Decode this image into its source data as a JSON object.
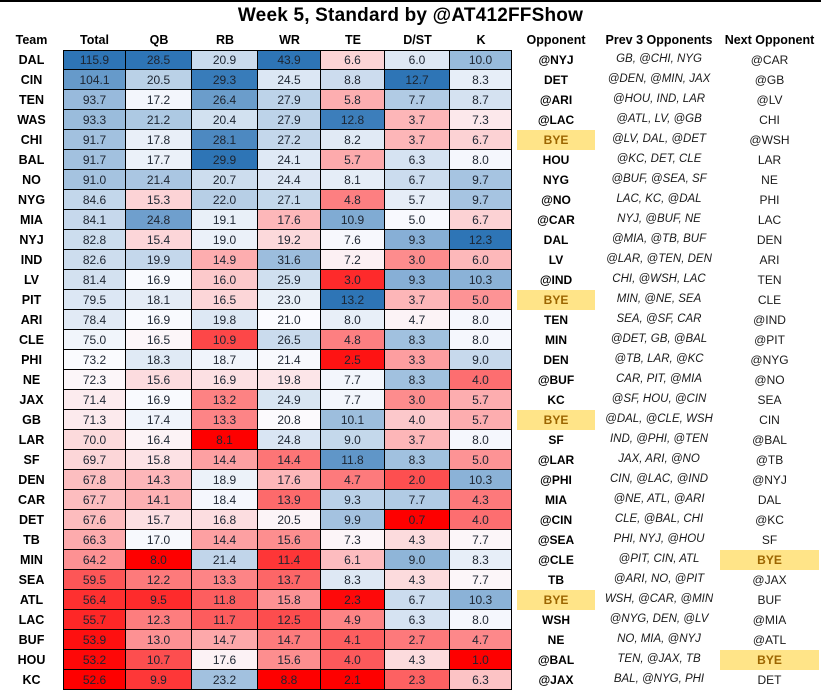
{
  "title": "Week 5, Standard by @AT412FFShow",
  "colors": {
    "scale_low": "#FE0000",
    "scale_mid": "#FCFCFF",
    "scale_high": "#2E75B6",
    "bye_bg": "#FFE488",
    "bye_text": "#9C6500",
    "cell_border": "#000000",
    "number_text": "#1C2430"
  },
  "chart_data": {
    "type": "table",
    "title": "Week 5, Standard by @AT412FFShow",
    "columns": [
      "Team",
      "Total",
      "QB",
      "RB",
      "WR",
      "TE",
      "D/ST",
      "K",
      "Opponent",
      "Prev 3 Opponents",
      "Next Opponent"
    ],
    "score_columns": [
      "Total",
      "QB",
      "RB",
      "WR",
      "TE",
      "D/ST",
      "K"
    ],
    "color_scale": "per-column 3-color scale: red at column min, white at column median, blue at column max",
    "bye_highlight": "gold fill with dark gold text on BYE cells",
    "rows": [
      {
        "team": "DAL",
        "total": 115.9,
        "qb": 28.5,
        "rb": 20.9,
        "wr": 43.9,
        "te": 6.6,
        "dst": 6.0,
        "k": 10.0,
        "opp": "@NYJ",
        "prev3": "GB, @CHI, NYG",
        "next": "@CAR"
      },
      {
        "team": "CIN",
        "total": 104.1,
        "qb": 20.5,
        "rb": 29.3,
        "wr": 24.5,
        "te": 8.8,
        "dst": 12.7,
        "k": 8.3,
        "opp": "DET",
        "prev3": "@DEN, @MIN, JAX",
        "next": "@GB"
      },
      {
        "team": "TEN",
        "total": 93.7,
        "qb": 17.2,
        "rb": 26.4,
        "wr": 27.9,
        "te": 5.8,
        "dst": 7.7,
        "k": 8.7,
        "opp": "@ARI",
        "prev3": "@HOU, IND, LAR",
        "next": "@LV"
      },
      {
        "team": "WAS",
        "total": 93.3,
        "qb": 21.2,
        "rb": 20.4,
        "wr": 27.9,
        "te": 12.8,
        "dst": 3.7,
        "k": 7.3,
        "opp": "@LAC",
        "prev3": "@ATL, LV, @GB",
        "next": "CHI"
      },
      {
        "team": "CHI",
        "total": 91.7,
        "qb": 17.8,
        "rb": 28.1,
        "wr": 27.2,
        "te": 8.2,
        "dst": 3.7,
        "k": 6.7,
        "opp": "BYE",
        "prev3": "@LV, DAL, @DET",
        "next": "@WSH"
      },
      {
        "team": "BAL",
        "total": 91.7,
        "qb": 17.7,
        "rb": 29.9,
        "wr": 24.1,
        "te": 5.7,
        "dst": 6.3,
        "k": 8.0,
        "opp": "HOU",
        "prev3": "@KC, DET, CLE",
        "next": "LAR"
      },
      {
        "team": "NO",
        "total": 91.0,
        "qb": 21.4,
        "rb": 20.7,
        "wr": 24.4,
        "te": 8.1,
        "dst": 6.7,
        "k": 9.7,
        "opp": "NYG",
        "prev3": "@BUF, @SEA, SF",
        "next": "NE"
      },
      {
        "team": "NYG",
        "total": 84.6,
        "qb": 15.3,
        "rb": 22.0,
        "wr": 27.1,
        "te": 4.8,
        "dst": 5.7,
        "k": 9.7,
        "opp": "@NO",
        "prev3": "LAC, KC, @DAL",
        "next": "PHI"
      },
      {
        "team": "MIA",
        "total": 84.1,
        "qb": 24.8,
        "rb": 19.1,
        "wr": 17.6,
        "te": 10.9,
        "dst": 5.0,
        "k": 6.7,
        "opp": "@CAR",
        "prev3": "NYJ, @BUF, NE",
        "next": "LAC"
      },
      {
        "team": "NYJ",
        "total": 82.8,
        "qb": 15.4,
        "rb": 19.0,
        "wr": 19.2,
        "te": 7.6,
        "dst": 9.3,
        "k": 12.3,
        "opp": "DAL",
        "prev3": "@MIA, @TB, BUF",
        "next": "DEN"
      },
      {
        "team": "IND",
        "total": 82.6,
        "qb": 19.9,
        "rb": 14.9,
        "wr": 31.6,
        "te": 7.2,
        "dst": 3.0,
        "k": 6.0,
        "opp": "LV",
        "prev3": "@LAR, @TEN, DEN",
        "next": "ARI"
      },
      {
        "team": "LV",
        "total": 81.4,
        "qb": 16.9,
        "rb": 16.0,
        "wr": 25.9,
        "te": 3.0,
        "dst": 9.3,
        "k": 10.3,
        "opp": "@IND",
        "prev3": "CHI, @WSH, LAC",
        "next": "TEN"
      },
      {
        "team": "PIT",
        "total": 79.5,
        "qb": 18.1,
        "rb": 16.5,
        "wr": 23.0,
        "te": 13.2,
        "dst": 3.7,
        "k": 5.0,
        "opp": "BYE",
        "prev3": "MIN, @NE, SEA",
        "next": "CLE"
      },
      {
        "team": "ARI",
        "total": 78.4,
        "qb": 16.9,
        "rb": 19.8,
        "wr": 21.0,
        "te": 8.0,
        "dst": 4.7,
        "k": 8.0,
        "opp": "TEN",
        "prev3": "SEA, @SF, CAR",
        "next": "@IND"
      },
      {
        "team": "CLE",
        "total": 75.0,
        "qb": 16.5,
        "rb": 10.9,
        "wr": 26.5,
        "te": 4.8,
        "dst": 8.3,
        "k": 8.0,
        "opp": "MIN",
        "prev3": "@DET, GB, @BAL",
        "next": "@PIT"
      },
      {
        "team": "PHI",
        "total": 73.2,
        "qb": 18.3,
        "rb": 18.7,
        "wr": 21.4,
        "te": 2.5,
        "dst": 3.3,
        "k": 9.0,
        "opp": "DEN",
        "prev3": "@TB, LAR, @KC",
        "next": "@NYG"
      },
      {
        "team": "NE",
        "total": 72.3,
        "qb": 15.6,
        "rb": 16.9,
        "wr": 19.8,
        "te": 7.7,
        "dst": 8.3,
        "k": 4.0,
        "opp": "@BUF",
        "prev3": "CAR, PIT, @MIA",
        "next": "@NO"
      },
      {
        "team": "JAX",
        "total": 71.4,
        "qb": 16.9,
        "rb": 13.2,
        "wr": 24.9,
        "te": 7.7,
        "dst": 3.0,
        "k": 5.7,
        "opp": "KC",
        "prev3": "@SF, HOU, @CIN",
        "next": "SEA"
      },
      {
        "team": "GB",
        "total": 71.3,
        "qb": 17.4,
        "rb": 13.3,
        "wr": 20.8,
        "te": 10.1,
        "dst": 4.0,
        "k": 5.7,
        "opp": "BYE",
        "prev3": "@DAL, @CLE, WSH",
        "next": "CIN"
      },
      {
        "team": "LAR",
        "total": 70.0,
        "qb": 16.4,
        "rb": 8.1,
        "wr": 24.8,
        "te": 9.0,
        "dst": 3.7,
        "k": 8.0,
        "opp": "SF",
        "prev3": "IND, @PHI, @TEN",
        "next": "@BAL"
      },
      {
        "team": "SF",
        "total": 69.7,
        "qb": 15.8,
        "rb": 14.4,
        "wr": 14.4,
        "te": 11.8,
        "dst": 8.3,
        "k": 5.0,
        "opp": "@LAR",
        "prev3": "JAX, ARI, @NO",
        "next": "@TB"
      },
      {
        "team": "DEN",
        "total": 67.8,
        "qb": 14.3,
        "rb": 18.9,
        "wr": 17.6,
        "te": 4.7,
        "dst": 2.0,
        "k": 10.3,
        "opp": "@PHI",
        "prev3": "CIN, @LAC, @IND",
        "next": "@NYJ"
      },
      {
        "team": "CAR",
        "total": 67.7,
        "qb": 14.1,
        "rb": 18.4,
        "wr": 13.9,
        "te": 9.3,
        "dst": 7.7,
        "k": 4.3,
        "opp": "MIA",
        "prev3": "@NE, ATL, @ARI",
        "next": "DAL"
      },
      {
        "team": "DET",
        "total": 67.6,
        "qb": 15.7,
        "rb": 16.8,
        "wr": 20.5,
        "te": 9.9,
        "dst": 0.7,
        "k": 4.0,
        "opp": "@CIN",
        "prev3": "CLE, @BAL, CHI",
        "next": "@KC"
      },
      {
        "team": "TB",
        "total": 66.3,
        "qb": 17.0,
        "rb": 14.4,
        "wr": 15.6,
        "te": 7.3,
        "dst": 4.3,
        "k": 7.7,
        "opp": "@SEA",
        "prev3": "PHI, NYJ, @HOU",
        "next": "SF"
      },
      {
        "team": "MIN",
        "total": 64.2,
        "qb": 8.0,
        "rb": 21.4,
        "wr": 11.4,
        "te": 6.1,
        "dst": 9.0,
        "k": 8.3,
        "opp": "@CLE",
        "prev3": "@PIT, CIN, ATL",
        "next": "BYE"
      },
      {
        "team": "SEA",
        "total": 59.5,
        "qb": 12.2,
        "rb": 13.3,
        "wr": 13.7,
        "te": 8.3,
        "dst": 4.3,
        "k": 7.7,
        "opp": "TB",
        "prev3": "@ARI, NO, @PIT",
        "next": "@JAX"
      },
      {
        "team": "ATL",
        "total": 56.4,
        "qb": 9.5,
        "rb": 11.8,
        "wr": 15.8,
        "te": 2.3,
        "dst": 6.7,
        "k": 10.3,
        "opp": "BYE",
        "prev3": "WSH, @CAR, @MIN",
        "next": "BUF"
      },
      {
        "team": "LAC",
        "total": 55.7,
        "qb": 12.3,
        "rb": 11.7,
        "wr": 12.5,
        "te": 4.9,
        "dst": 6.3,
        "k": 8.0,
        "opp": "WSH",
        "prev3": "@NYG, DEN, @LV",
        "next": "@MIA"
      },
      {
        "team": "BUF",
        "total": 53.9,
        "qb": 13.0,
        "rb": 14.7,
        "wr": 14.7,
        "te": 4.1,
        "dst": 2.7,
        "k": 4.7,
        "opp": "NE",
        "prev3": "NO, MIA, @NYJ",
        "next": "@ATL"
      },
      {
        "team": "HOU",
        "total": 53.2,
        "qb": 10.7,
        "rb": 17.6,
        "wr": 15.6,
        "te": 4.0,
        "dst": 4.3,
        "k": 1.0,
        "opp": "@BAL",
        "prev3": "TEN, @JAX, TB",
        "next": "BYE"
      },
      {
        "team": "KC",
        "total": 52.6,
        "qb": 9.9,
        "rb": 23.2,
        "wr": 8.8,
        "te": 2.1,
        "dst": 2.3,
        "k": 6.3,
        "opp": "@JAX",
        "prev3": "BAL, @NYG, PHI",
        "next": "DET"
      }
    ]
  }
}
